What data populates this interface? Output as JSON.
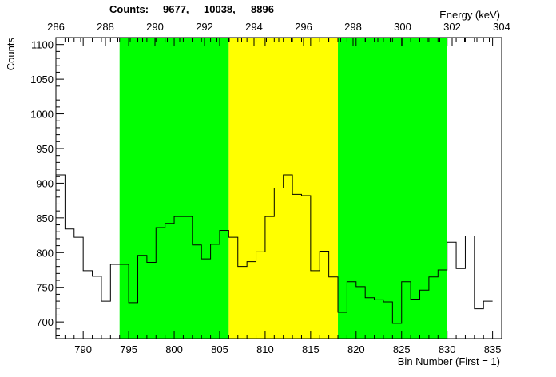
{
  "chart_data": {
    "type": "histogram-step",
    "header": {
      "label": "Counts:",
      "values": [
        "9677,",
        "10038,",
        "8896"
      ]
    },
    "xlabel": "Bin Number (First = 1)",
    "ylabel": "Counts",
    "top_xlabel": "Energy (keV)",
    "xlim": [
      787,
      836
    ],
    "ylim": [
      676,
      1110
    ],
    "x_ticks": [
      790,
      795,
      800,
      805,
      810,
      815,
      820,
      825,
      830,
      835
    ],
    "y_ticks": [
      700,
      750,
      800,
      850,
      900,
      950,
      1000,
      1050,
      1100
    ],
    "top_ticks": [
      286,
      288,
      290,
      292,
      294,
      296,
      298,
      300,
      302,
      304
    ],
    "top_axis_map": {
      "bin_a": 787,
      "energy_a": 286,
      "bin_b": 836,
      "energy_b": 304
    },
    "regions": [
      {
        "name": "background-left",
        "x0": 794,
        "x1": 806,
        "color": "#00ff00"
      },
      {
        "name": "peak",
        "x0": 806,
        "x1": 818,
        "color": "#ffff00"
      },
      {
        "name": "background-right",
        "x0": 818,
        "x1": 830,
        "color": "#00ff00"
      }
    ],
    "bin_start": 787,
    "bin_width": 1,
    "counts": [
      912,
      834,
      822,
      774,
      766,
      730,
      783,
      783,
      728,
      796,
      786,
      836,
      842,
      852,
      852,
      811,
      791,
      812,
      832,
      822,
      780,
      787,
      801,
      852,
      893,
      912,
      884,
      882,
      774,
      802,
      765,
      714,
      758,
      751,
      735,
      732,
      729,
      698,
      758,
      733,
      746,
      765,
      775,
      815,
      777,
      824,
      719,
      730
    ]
  }
}
